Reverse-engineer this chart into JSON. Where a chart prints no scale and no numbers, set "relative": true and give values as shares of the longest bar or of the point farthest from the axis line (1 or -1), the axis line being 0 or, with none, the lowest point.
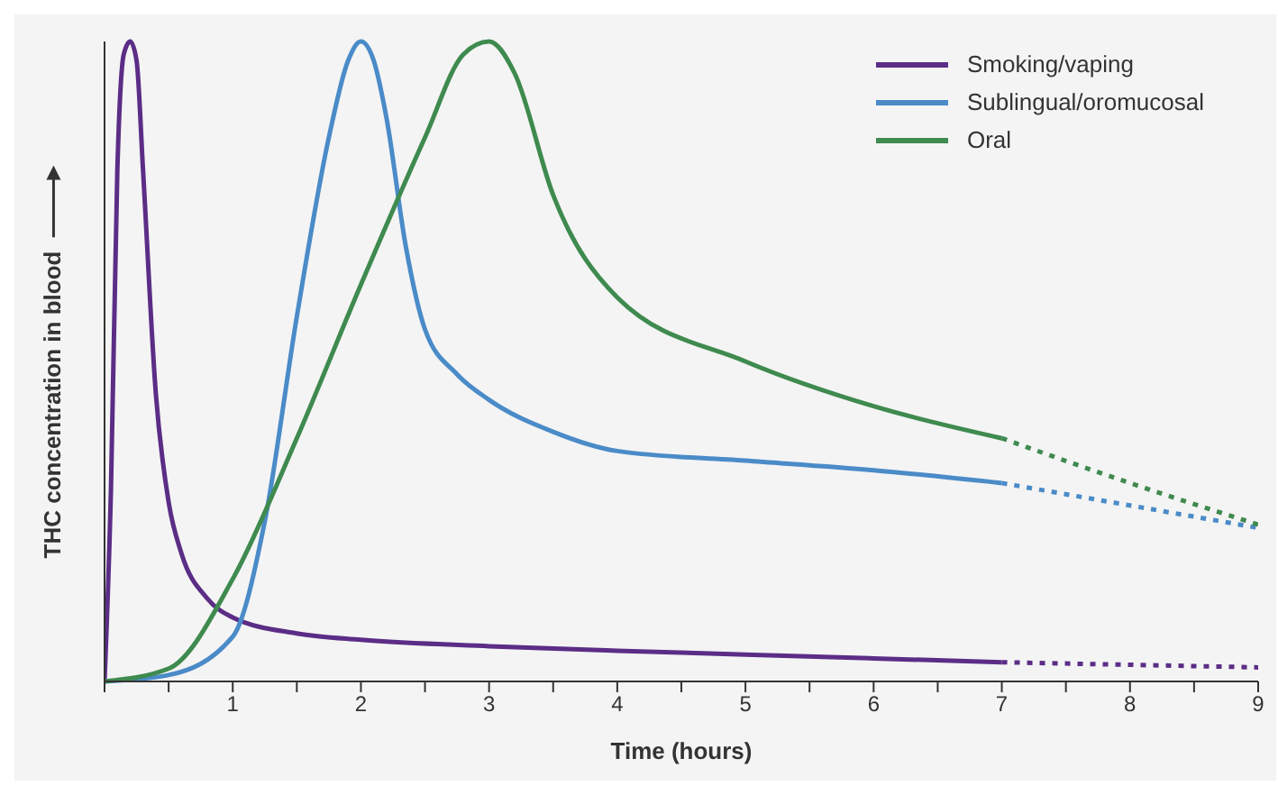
{
  "chart_data": {
    "type": "line",
    "relative": true,
    "xlabel": "Time (hours)",
    "ylabel": "THC concentration in blood",
    "xlim": [
      0,
      9
    ],
    "xticks": [
      {
        "value": 0,
        "label": null
      },
      {
        "value": 0.5,
        "label": null
      },
      1,
      {
        "value": 1.5,
        "label": null
      },
      2,
      {
        "value": 2.5,
        "label": null
      },
      3,
      {
        "value": 3.5,
        "label": null
      },
      4,
      {
        "value": 4.5,
        "label": null
      },
      5,
      {
        "value": 5.5,
        "label": null
      },
      6,
      {
        "value": 6.5,
        "label": null
      },
      7,
      {
        "value": 7.5,
        "label": null
      },
      8,
      {
        "value": 8.5,
        "label": null
      },
      9
    ],
    "legend": "top right",
    "marker": "none",
    "series": [
      {
        "name": "Smoking/vaping",
        "color": "#5b2d86",
        "line_style": "solid",
        "x": [
          0,
          0.05,
          0.1,
          0.15,
          0.2,
          0.25,
          0.3,
          0.4,
          0.5,
          0.6,
          0.8,
          1,
          1.5,
          2,
          3,
          4,
          5,
          6,
          7
        ],
        "values": [
          0,
          0.3,
          0.8,
          0.98,
          1,
          0.97,
          0.8,
          0.45,
          0.28,
          0.2,
          0.13,
          0.1,
          0.075,
          0.065,
          0.055,
          0.048,
          0.042,
          0.036,
          0.03
        ]
      },
      {
        "name": "Sublingual/oromucosal",
        "color": "#4a8bc8",
        "line_style": "solid",
        "x": [
          0,
          0.5,
          1,
          1.25,
          1.5,
          1.75,
          1.9,
          2,
          2.1,
          2.2,
          2.35,
          2.5,
          2.75,
          3,
          3.5,
          4,
          5,
          6,
          7
        ],
        "values": [
          0,
          0.01,
          0.07,
          0.25,
          0.57,
          0.85,
          0.97,
          1,
          0.97,
          0.88,
          0.68,
          0.55,
          0.48,
          0.44,
          0.39,
          0.36,
          0.345,
          0.33,
          0.31
        ]
      },
      {
        "name": "Oral",
        "color": "#3f8a4f",
        "line_style": "solid",
        "x": [
          0,
          0.5,
          1,
          1.5,
          2,
          2.5,
          2.8,
          3,
          3.2,
          3.5,
          4,
          5,
          6,
          7
        ],
        "values": [
          0,
          0.02,
          0.16,
          0.38,
          0.62,
          0.85,
          0.98,
          1,
          0.95,
          0.76,
          0.6,
          0.5,
          0.43,
          0.38
        ]
      },
      {
        "color": "#5b2d86",
        "line_style": "dotted",
        "x": [
          7,
          8,
          9
        ],
        "values": [
          0.03,
          0.026,
          0.022
        ]
      },
      {
        "color": "#4a8bc8",
        "line_style": "dotted",
        "x": [
          7,
          8,
          9
        ],
        "values": [
          0.31,
          0.275,
          0.24
        ]
      },
      {
        "color": "#3f8a4f",
        "line_style": "dotted",
        "x": [
          7,
          8,
          9
        ],
        "values": [
          0.38,
          0.31,
          0.245
        ]
      }
    ]
  }
}
